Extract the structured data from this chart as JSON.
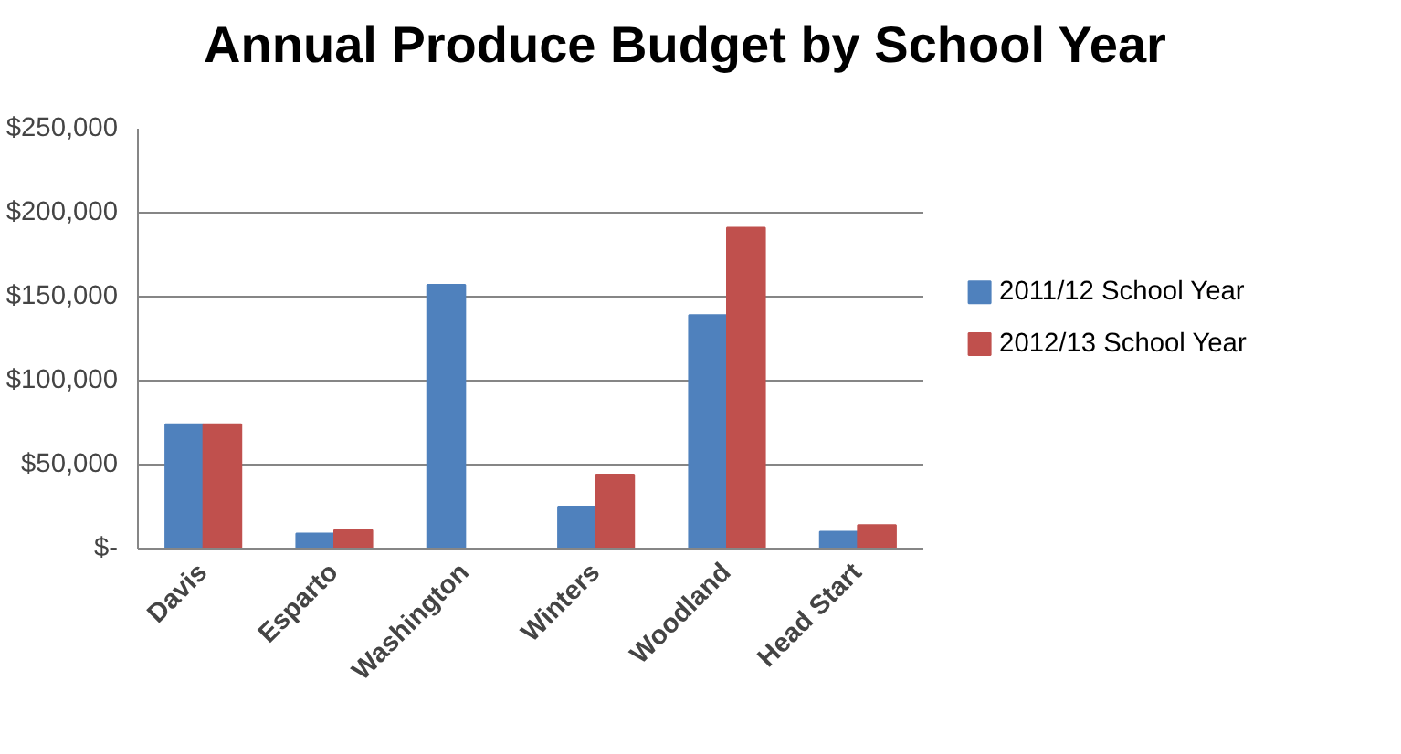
{
  "chart_data": {
    "type": "bar",
    "title": "Annual Produce Budget by School Year",
    "categories": [
      "Davis",
      "Esparto",
      "Washington",
      "Winters",
      "Woodland",
      "Head Start"
    ],
    "series": [
      {
        "name": "2011/12 School Year",
        "color": "#4f81bd",
        "values": [
          74000,
          9000,
          157000,
          25000,
          139000,
          10000
        ]
      },
      {
        "name": "2012/13 School Year",
        "color": "#c0504d",
        "values": [
          74000,
          11000,
          null,
          44000,
          191000,
          14000
        ]
      }
    ],
    "ylim": [
      0,
      250000
    ],
    "yticks": [
      {
        "value": 0,
        "label": "$-"
      },
      {
        "value": 50000,
        "label": "$50,000"
      },
      {
        "value": 100000,
        "label": "$100,000"
      },
      {
        "value": 150000,
        "label": "$150,000"
      },
      {
        "value": 200000,
        "label": "$200,000"
      },
      {
        "value": 250000,
        "label": "$250,000"
      }
    ],
    "grid": "y",
    "legend": "right"
  }
}
